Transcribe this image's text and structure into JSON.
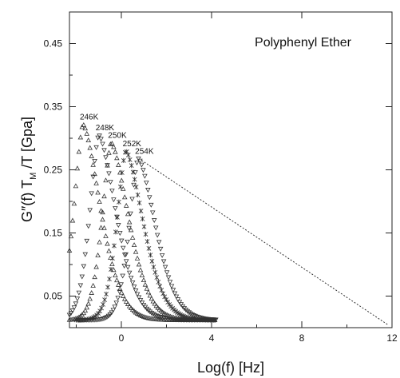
{
  "chart_data": {
    "type": "scatter",
    "title": "",
    "annotation": "Polyphenyl Ether",
    "xlabel": "Log(f)  [Hz]",
    "ylabel_parts": {
      "main": "G″(f)  T",
      "sub": "M",
      "rest": " /T  [Gpa]"
    },
    "xlim": [
      -2.3,
      12
    ],
    "ylim": [
      0,
      0.5
    ],
    "x_ticks": [
      0,
      4,
      8,
      12
    ],
    "x_tick_labels": [
      "0",
      "4",
      "8",
      "12"
    ],
    "y_ticks": [
      0.05,
      0.15,
      0.25,
      0.35,
      0.45
    ],
    "y_tick_labels": [
      "0.05",
      "0.15",
      "0.25",
      "0.35",
      "0.45"
    ],
    "grid": false,
    "series": [
      {
        "name": "246K",
        "peak_x": -1.7,
        "peak_y": 0.322,
        "x_start": -2.3,
        "x_end": 4.2,
        "marker": "triangle-up"
      },
      {
        "name": "248K",
        "peak_x": -1.0,
        "peak_y": 0.305,
        "x_start": -2.3,
        "x_end": 4.2,
        "marker": "triangle-down"
      },
      {
        "name": "250K",
        "peak_x": -0.45,
        "peak_y": 0.293,
        "x_start": -2.3,
        "x_end": 4.2,
        "marker": "triangle-up"
      },
      {
        "name": "252K",
        "peak_x": 0.2,
        "peak_y": 0.28,
        "x_start": -2.0,
        "x_end": 4.2,
        "marker": "x"
      },
      {
        "name": "254K",
        "peak_x": 0.75,
        "peak_y": 0.268,
        "x_start": -1.9,
        "x_end": 4.2,
        "marker": "triangle-down"
      }
    ],
    "reference_line": {
      "x": [
        0.9,
        11.8
      ],
      "y": [
        0.265,
        0.005
      ],
      "style": "dashed"
    }
  }
}
